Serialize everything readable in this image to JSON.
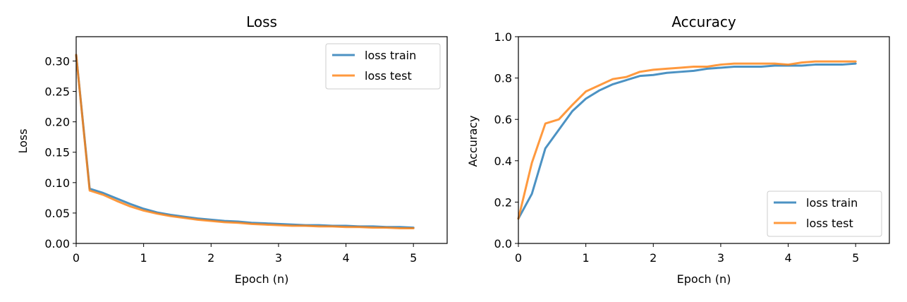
{
  "chart_data": [
    {
      "type": "line",
      "title": "Loss",
      "xlabel": "Epoch (n)",
      "ylabel": "Loss",
      "xlim": [
        0,
        5.5
      ],
      "ylim": [
        0,
        0.34
      ],
      "xticks": [
        0,
        1,
        2,
        3,
        4,
        5
      ],
      "xtick_labels": [
        "0",
        "1",
        "2",
        "3",
        "4",
        "5"
      ],
      "yticks": [
        0,
        0.05,
        0.1,
        0.15,
        0.2,
        0.25,
        0.3
      ],
      "ytick_labels": [
        "0.00",
        "0.05",
        "0.10",
        "0.15",
        "0.20",
        "0.25",
        "0.30"
      ],
      "grid": false,
      "legend_position": "top-right",
      "x": [
        0,
        0.2,
        0.4,
        0.6,
        0.8,
        1.0,
        1.2,
        1.4,
        1.6,
        1.8,
        2.0,
        2.2,
        2.4,
        2.6,
        2.8,
        3.0,
        3.2,
        3.4,
        3.6,
        3.8,
        4.0,
        4.2,
        4.4,
        4.6,
        4.8,
        5.0
      ],
      "series": [
        {
          "name": "loss train",
          "color": "#1f77b4",
          "values": [
            0.31,
            0.09,
            0.083,
            0.074,
            0.065,
            0.057,
            0.051,
            0.047,
            0.044,
            0.041,
            0.039,
            0.037,
            0.036,
            0.034,
            0.033,
            0.032,
            0.031,
            0.03,
            0.03,
            0.029,
            0.029,
            0.028,
            0.028,
            0.027,
            0.027,
            0.026
          ]
        },
        {
          "name": "loss test",
          "color": "#ff7f0e",
          "values": [
            0.31,
            0.087,
            0.08,
            0.07,
            0.061,
            0.054,
            0.049,
            0.045,
            0.042,
            0.039,
            0.037,
            0.035,
            0.034,
            0.032,
            0.031,
            0.03,
            0.029,
            0.029,
            0.028,
            0.028,
            0.027,
            0.027,
            0.026,
            0.026,
            0.025,
            0.025
          ]
        }
      ]
    },
    {
      "type": "line",
      "title": "Accuracy",
      "xlabel": "Epoch (n)",
      "ylabel": "Accuracy",
      "xlim": [
        0,
        5.5
      ],
      "ylim": [
        0,
        1.0
      ],
      "xticks": [
        0,
        1,
        2,
        3,
        4,
        5
      ],
      "xtick_labels": [
        "0",
        "1",
        "2",
        "3",
        "4",
        "5"
      ],
      "yticks": [
        0,
        0.2,
        0.4,
        0.6,
        0.8,
        1.0
      ],
      "ytick_labels": [
        "0.0",
        "0.2",
        "0.4",
        "0.6",
        "0.8",
        "1.0"
      ],
      "grid": false,
      "legend_position": "bottom-right",
      "x": [
        0,
        0.2,
        0.4,
        0.6,
        0.8,
        1.0,
        1.2,
        1.4,
        1.6,
        1.8,
        2.0,
        2.2,
        2.4,
        2.6,
        2.8,
        3.0,
        3.2,
        3.4,
        3.6,
        3.8,
        4.0,
        4.2,
        4.4,
        4.6,
        4.8,
        5.0
      ],
      "series": [
        {
          "name": "loss train",
          "color": "#1f77b4",
          "values": [
            0.12,
            0.24,
            0.46,
            0.55,
            0.64,
            0.7,
            0.74,
            0.77,
            0.79,
            0.81,
            0.815,
            0.825,
            0.83,
            0.835,
            0.845,
            0.85,
            0.855,
            0.855,
            0.855,
            0.86,
            0.86,
            0.86,
            0.865,
            0.865,
            0.865,
            0.87
          ]
        },
        {
          "name": "loss test",
          "color": "#ff7f0e",
          "values": [
            0.12,
            0.39,
            0.58,
            0.6,
            0.67,
            0.735,
            0.765,
            0.795,
            0.805,
            0.83,
            0.84,
            0.845,
            0.85,
            0.855,
            0.855,
            0.865,
            0.87,
            0.87,
            0.87,
            0.87,
            0.865,
            0.875,
            0.88,
            0.88,
            0.88,
            0.88
          ]
        }
      ]
    }
  ]
}
